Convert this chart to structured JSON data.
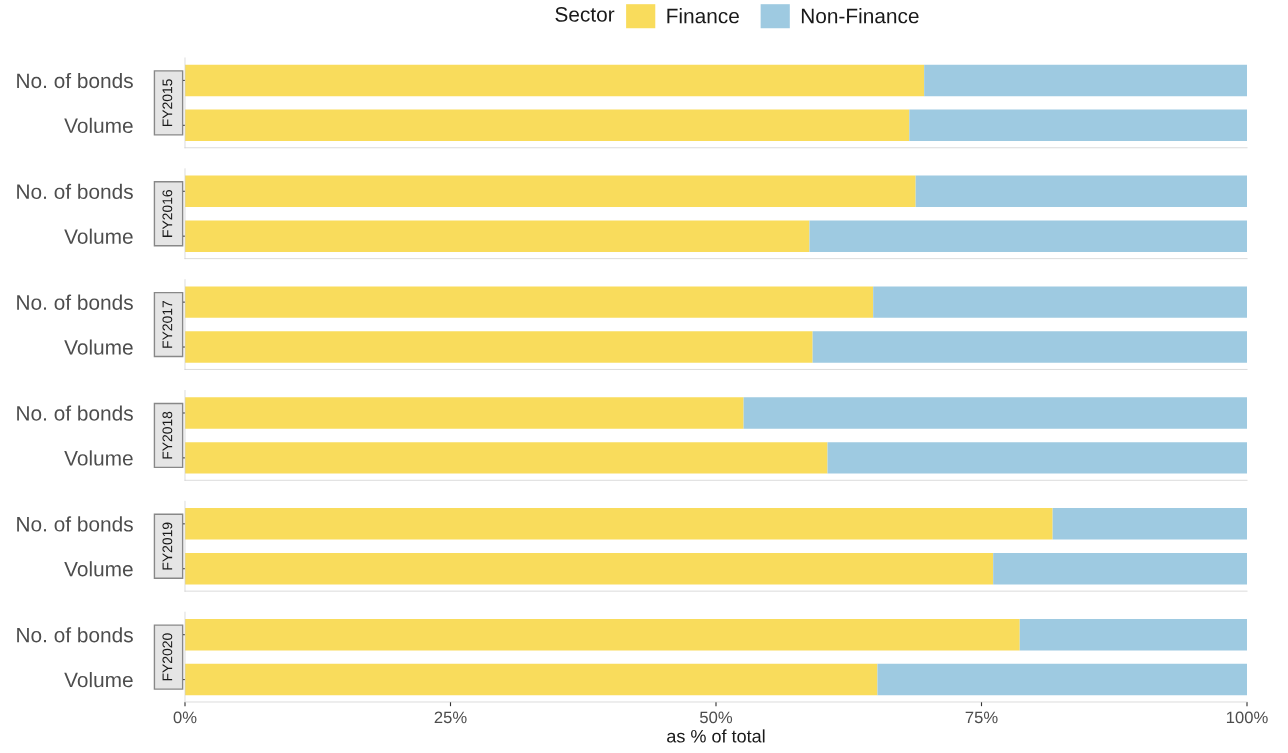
{
  "chart_data": [
    {
      "type": "bar",
      "orientation": "horizontal",
      "stacked": true,
      "title": "FY2015",
      "legend": "top",
      "legend_title": "Sector",
      "categories": [
        "No. of bonds",
        "Volume"
      ],
      "xlim": [
        0,
        100
      ],
      "tick_labels": "y",
      "grid": false,
      "series": [
        {
          "name": "Finance",
          "color": "#f9dc5c",
          "values": [
            69.6,
            68.2
          ]
        },
        {
          "name": "Non-Finance",
          "color": "#9ecae1",
          "values": [
            30.4,
            31.8
          ]
        }
      ]
    },
    {
      "type": "bar",
      "orientation": "horizontal",
      "stacked": true,
      "title": "FY2016",
      "categories": [
        "No. of bonds",
        "Volume"
      ],
      "xlim": [
        0,
        100
      ],
      "tick_labels": "y",
      "grid": false,
      "series": [
        {
          "color": "#f9dc5c",
          "values": [
            68.8,
            58.8
          ]
        },
        {
          "color": "#9ecae1",
          "values": [
            31.2,
            41.2
          ]
        }
      ]
    },
    {
      "type": "bar",
      "orientation": "horizontal",
      "stacked": true,
      "title": "FY2017",
      "categories": [
        "No. of bonds",
        "Volume"
      ],
      "xlim": [
        0,
        100
      ],
      "tick_labels": "y",
      "grid": false,
      "series": [
        {
          "color": "#f9dc5c",
          "values": [
            64.8,
            59.1
          ]
        },
        {
          "color": "#9ecae1",
          "values": [
            35.2,
            40.9
          ]
        }
      ]
    },
    {
      "type": "bar",
      "orientation": "horizontal",
      "stacked": true,
      "title": "FY2018",
      "categories": [
        "No. of bonds",
        "Volume"
      ],
      "xlim": [
        0,
        100
      ],
      "tick_labels": "y",
      "grid": false,
      "series": [
        {
          "color": "#f9dc5c",
          "values": [
            52.6,
            60.5
          ]
        },
        {
          "color": "#9ecae1",
          "values": [
            47.4,
            39.5
          ]
        }
      ]
    },
    {
      "type": "bar",
      "orientation": "horizontal",
      "stacked": true,
      "title": "FY2019",
      "categories": [
        "No. of bonds",
        "Volume"
      ],
      "xlim": [
        0,
        100
      ],
      "tick_labels": "y",
      "grid": false,
      "series": [
        {
          "color": "#f9dc5c",
          "values": [
            81.7,
            76.1
          ]
        },
        {
          "color": "#9ecae1",
          "values": [
            18.3,
            23.9
          ]
        }
      ]
    },
    {
      "type": "bar",
      "orientation": "horizontal",
      "stacked": true,
      "title": "FY2020",
      "xlabel": "as % of total",
      "categories": [
        "No. of bonds",
        "Volume"
      ],
      "xlim": [
        0,
        100
      ],
      "xticks": [
        {
          "value": 0,
          "label": "0%"
        },
        {
          "value": 25,
          "label": "25%"
        },
        {
          "value": 50,
          "label": "50%"
        },
        {
          "value": 75,
          "label": "75%"
        },
        {
          "value": 100,
          "label": "100%"
        }
      ],
      "grid": false,
      "series": [
        {
          "color": "#f9dc5c",
          "values": [
            78.6,
            65.2
          ]
        },
        {
          "color": "#9ecae1",
          "values": [
            21.4,
            34.8
          ]
        }
      ]
    }
  ]
}
